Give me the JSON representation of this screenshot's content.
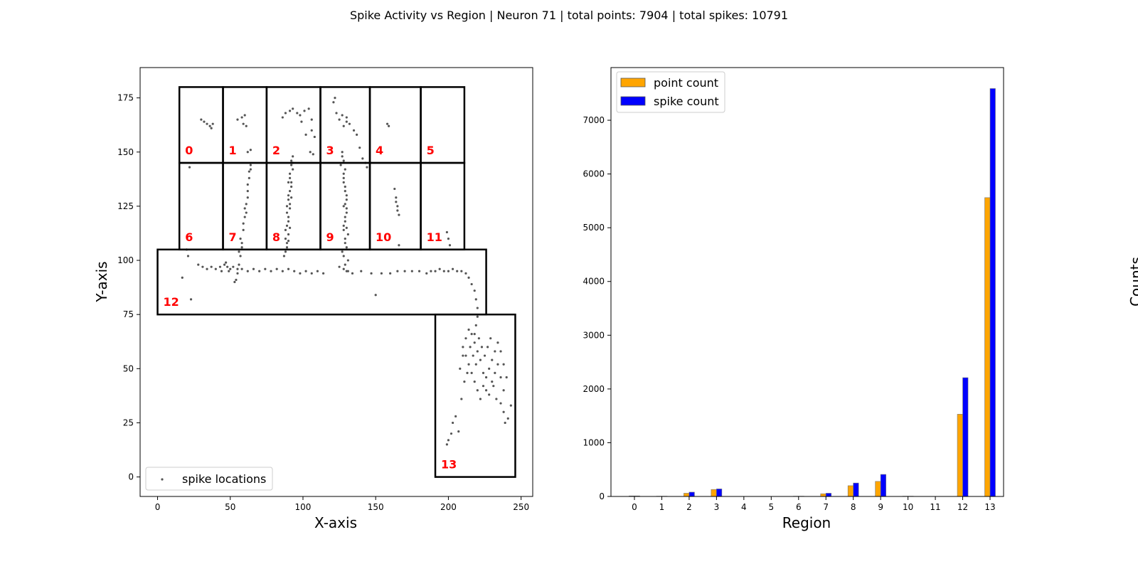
{
  "figure": {
    "title": "Spike Activity vs Region | Neuron 71 | total points: 7904 | total spikes: 10791"
  },
  "chart_data": [
    {
      "type": "scatter",
      "xlabel": "X-axis",
      "ylabel": "Y-axis",
      "xlim": [
        -12,
        258
      ],
      "ylim": [
        -9,
        189
      ],
      "xticks": [
        0,
        50,
        100,
        150,
        200,
        250
      ],
      "yticks": [
        0,
        25,
        50,
        75,
        100,
        125,
        150,
        175
      ],
      "legend": {
        "position": "lower-left",
        "entries": [
          "spike locations"
        ]
      },
      "point_color": "#555555",
      "label_color": "#ff0000",
      "regions": [
        {
          "label": "0",
          "x0": 15,
          "x1": 45,
          "y0": 145,
          "y1": 180
        },
        {
          "label": "1",
          "x0": 45,
          "x1": 75,
          "y0": 145,
          "y1": 180
        },
        {
          "label": "2",
          "x0": 75,
          "x1": 112,
          "y0": 145,
          "y1": 180
        },
        {
          "label": "3",
          "x0": 112,
          "x1": 146,
          "y0": 145,
          "y1": 180
        },
        {
          "label": "4",
          "x0": 146,
          "x1": 181,
          "y0": 145,
          "y1": 180
        },
        {
          "label": "5",
          "x0": 181,
          "x1": 211,
          "y0": 145,
          "y1": 180
        },
        {
          "label": "6",
          "x0": 15,
          "x1": 45,
          "y0": 105,
          "y1": 145
        },
        {
          "label": "7",
          "x0": 45,
          "x1": 75,
          "y0": 105,
          "y1": 145
        },
        {
          "label": "8",
          "x0": 75,
          "x1": 112,
          "y0": 105,
          "y1": 145
        },
        {
          "label": "9",
          "x0": 112,
          "x1": 146,
          "y0": 105,
          "y1": 145
        },
        {
          "label": "10",
          "x0": 146,
          "x1": 181,
          "y0": 105,
          "y1": 145
        },
        {
          "label": "11",
          "x0": 181,
          "x1": 211,
          "y0": 105,
          "y1": 145
        },
        {
          "label": "12",
          "x0": 0,
          "x1": 226,
          "y0": 75,
          "y1": 105
        },
        {
          "label": "13",
          "x0": 191,
          "x1": 246,
          "y0": 0,
          "y1": 75
        }
      ],
      "points": [
        [
          32,
          164
        ],
        [
          34,
          163
        ],
        [
          36,
          162
        ],
        [
          37,
          161
        ],
        [
          38,
          163
        ],
        [
          30,
          165
        ],
        [
          22,
          143
        ],
        [
          55,
          165
        ],
        [
          58,
          166
        ],
        [
          60,
          167
        ],
        [
          59,
          163
        ],
        [
          61,
          162
        ],
        [
          64,
          151
        ],
        [
          62,
          150
        ],
        [
          88,
          168
        ],
        [
          91,
          169
        ],
        [
          93,
          170
        ],
        [
          96,
          168
        ],
        [
          98,
          167
        ],
        [
          101,
          169
        ],
        [
          104,
          170
        ],
        [
          106,
          165
        ],
        [
          86,
          166
        ],
        [
          99,
          164
        ],
        [
          106,
          160
        ],
        [
          108,
          157
        ],
        [
          107,
          149
        ],
        [
          105,
          150
        ],
        [
          102,
          158
        ],
        [
          121,
          173
        ],
        [
          122,
          175
        ],
        [
          123,
          168
        ],
        [
          125,
          165
        ],
        [
          127,
          167
        ],
        [
          130,
          166
        ],
        [
          132,
          163
        ],
        [
          135,
          160
        ],
        [
          137,
          158
        ],
        [
          139,
          152
        ],
        [
          141,
          147
        ],
        [
          143,
          145
        ],
        [
          144,
          143
        ],
        [
          128,
          162
        ],
        [
          130,
          164
        ],
        [
          158,
          163
        ],
        [
          159,
          162
        ],
        [
          64,
          144
        ],
        [
          63,
          138
        ],
        [
          62,
          132
        ],
        [
          61,
          126
        ],
        [
          60,
          120
        ],
        [
          59,
          114
        ],
        [
          58,
          108
        ],
        [
          57,
          102
        ],
        [
          56,
          98
        ],
        [
          55,
          94
        ],
        [
          54,
          91
        ],
        [
          53,
          90
        ],
        [
          63,
          141
        ],
        [
          62,
          135
        ],
        [
          60,
          124
        ],
        [
          59,
          117
        ],
        [
          57,
          110
        ],
        [
          56,
          104
        ],
        [
          62,
          129
        ],
        [
          61,
          122
        ],
        [
          58,
          106
        ],
        [
          64,
          142
        ],
        [
          93,
          148
        ],
        [
          92,
          144
        ],
        [
          91,
          140
        ],
        [
          92,
          136
        ],
        [
          91,
          132
        ],
        [
          90,
          128
        ],
        [
          91,
          124
        ],
        [
          90,
          120
        ],
        [
          89,
          116
        ],
        [
          90,
          112
        ],
        [
          89,
          108
        ],
        [
          88,
          104
        ],
        [
          92,
          146
        ],
        [
          91,
          138
        ],
        [
          90,
          130
        ],
        [
          89,
          122
        ],
        [
          88,
          114
        ],
        [
          90,
          118
        ],
        [
          91,
          126
        ],
        [
          92,
          134
        ],
        [
          93,
          142
        ],
        [
          88,
          110
        ],
        [
          87,
          102
        ],
        [
          89,
          106
        ],
        [
          91,
          115
        ],
        [
          90,
          136
        ],
        [
          92,
          129
        ],
        [
          93,
          145
        ],
        [
          89,
          125
        ],
        [
          90,
          109
        ],
        [
          127,
          150
        ],
        [
          128,
          146
        ],
        [
          129,
          142
        ],
        [
          128,
          138
        ],
        [
          129,
          134
        ],
        [
          130,
          130
        ],
        [
          129,
          126
        ],
        [
          130,
          122
        ],
        [
          129,
          118
        ],
        [
          128,
          114
        ],
        [
          129,
          110
        ],
        [
          130,
          106
        ],
        [
          128,
          102
        ],
        [
          129,
          98
        ],
        [
          130,
          95
        ],
        [
          127,
          148
        ],
        [
          128,
          140
        ],
        [
          129,
          132
        ],
        [
          130,
          124
        ],
        [
          128,
          116
        ],
        [
          129,
          108
        ],
        [
          127,
          104
        ],
        [
          131,
          100
        ],
        [
          128,
          136
        ],
        [
          130,
          128
        ],
        [
          129,
          120
        ],
        [
          131,
          112
        ],
        [
          126,
          144
        ],
        [
          130,
          115
        ],
        [
          128,
          125
        ],
        [
          163,
          133
        ],
        [
          164,
          129
        ],
        [
          165,
          125
        ],
        [
          166,
          121
        ],
        [
          164,
          127
        ],
        [
          165,
          123
        ],
        [
          166,
          107
        ],
        [
          199,
          113
        ],
        [
          200,
          110
        ],
        [
          201,
          107
        ],
        [
          20,
          105
        ],
        [
          21,
          102
        ],
        [
          17,
          92
        ],
        [
          23,
          82
        ],
        [
          28,
          98
        ],
        [
          31,
          97
        ],
        [
          34,
          96
        ],
        [
          37,
          97
        ],
        [
          40,
          96
        ],
        [
          43,
          97
        ],
        [
          46,
          98
        ],
        [
          48,
          97
        ],
        [
          50,
          96
        ],
        [
          47,
          99
        ],
        [
          44,
          95
        ],
        [
          49,
          95
        ],
        [
          52,
          97
        ],
        [
          55,
          96
        ],
        [
          58,
          96
        ],
        [
          62,
          95
        ],
        [
          66,
          96
        ],
        [
          70,
          95
        ],
        [
          74,
          96
        ],
        [
          78,
          95
        ],
        [
          82,
          96
        ],
        [
          86,
          95
        ],
        [
          90,
          96
        ],
        [
          94,
          95
        ],
        [
          98,
          94
        ],
        [
          102,
          95
        ],
        [
          106,
          94
        ],
        [
          110,
          95
        ],
        [
          114,
          94
        ],
        [
          125,
          97
        ],
        [
          128,
          96
        ],
        [
          131,
          95
        ],
        [
          134,
          94
        ],
        [
          140,
          95
        ],
        [
          147,
          94
        ],
        [
          154,
          94
        ],
        [
          150,
          84
        ],
        [
          160,
          94
        ],
        [
          165,
          95
        ],
        [
          170,
          95
        ],
        [
          175,
          95
        ],
        [
          180,
          95
        ],
        [
          185,
          94
        ],
        [
          188,
          95
        ],
        [
          191,
          95
        ],
        [
          194,
          96
        ],
        [
          197,
          95
        ],
        [
          200,
          95
        ],
        [
          203,
          96
        ],
        [
          206,
          95
        ],
        [
          209,
          95
        ],
        [
          212,
          94
        ],
        [
          214,
          92
        ],
        [
          216,
          89
        ],
        [
          218,
          86
        ],
        [
          219,
          82
        ],
        [
          220,
          78
        ],
        [
          220,
          74
        ],
        [
          219,
          70
        ],
        [
          218,
          66
        ],
        [
          210,
          60
        ],
        [
          212,
          56
        ],
        [
          214,
          52
        ],
        [
          216,
          48
        ],
        [
          218,
          44
        ],
        [
          220,
          40
        ],
        [
          222,
          36
        ],
        [
          224,
          42
        ],
        [
          226,
          46
        ],
        [
          228,
          50
        ],
        [
          230,
          54
        ],
        [
          232,
          58
        ],
        [
          234,
          62
        ],
        [
          236,
          58
        ],
        [
          238,
          52
        ],
        [
          240,
          46
        ],
        [
          238,
          40
        ],
        [
          236,
          34
        ],
        [
          226,
          40
        ],
        [
          224,
          48
        ],
        [
          222,
          54
        ],
        [
          220,
          58
        ],
        [
          218,
          62
        ],
        [
          216,
          66
        ],
        [
          214,
          68
        ],
        [
          212,
          64
        ],
        [
          210,
          56
        ],
        [
          208,
          50
        ],
        [
          228,
          38
        ],
        [
          230,
          44
        ],
        [
          232,
          48
        ],
        [
          234,
          52
        ],
        [
          236,
          46
        ],
        [
          221,
          64
        ],
        [
          223,
          60
        ],
        [
          225,
          56
        ],
        [
          227,
          60
        ],
        [
          229,
          64
        ],
        [
          231,
          42
        ],
        [
          233,
          36
        ],
        [
          217,
          56
        ],
        [
          215,
          60
        ],
        [
          213,
          48
        ],
        [
          211,
          44
        ],
        [
          219,
          52
        ],
        [
          209,
          36
        ],
        [
          205,
          28
        ],
        [
          203,
          25
        ],
        [
          200,
          17
        ],
        [
          199,
          15
        ],
        [
          202,
          20
        ],
        [
          207,
          21
        ],
        [
          239,
          25
        ],
        [
          243,
          33
        ],
        [
          241,
          27
        ],
        [
          238,
          30
        ]
      ]
    },
    {
      "type": "bar",
      "xlabel": "Region",
      "ylabel": "Counts",
      "ylim": [
        0,
        7980
      ],
      "yticks": [
        0,
        1000,
        2000,
        3000,
        4000,
        5000,
        6000,
        7000
      ],
      "categories": [
        "0",
        "1",
        "2",
        "3",
        "4",
        "5",
        "6",
        "7",
        "8",
        "9",
        "10",
        "11",
        "12",
        "13"
      ],
      "legend": {
        "position": "upper-left"
      },
      "series": [
        {
          "name": "point count",
          "color": "#ffa500",
          "values": [
            10,
            5,
            60,
            130,
            0,
            0,
            5,
            50,
            200,
            280,
            5,
            0,
            1530,
            5560
          ]
        },
        {
          "name": "spike count",
          "color": "#0000ff",
          "values": [
            10,
            5,
            80,
            140,
            0,
            0,
            5,
            60,
            250,
            410,
            5,
            0,
            2210,
            7590
          ]
        }
      ]
    }
  ]
}
